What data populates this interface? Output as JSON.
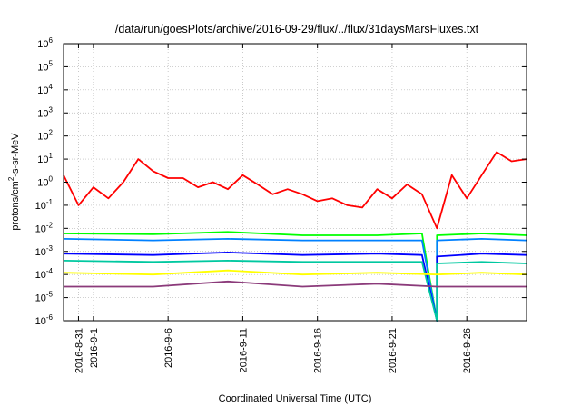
{
  "chart_data": {
    "type": "line",
    "title": "/data/run/goesPlots/archive/2016-09-29/flux/../flux/31daysMarsFluxes.txt",
    "xlabel": "Coordinated Universal Time (UTC)",
    "ylabel_parts": [
      "protons/cm",
      "2",
      "-s-sr-MeV"
    ],
    "y_scale": "log",
    "ylim": [
      1e-06,
      1000000.0
    ],
    "y_ticks": [
      {
        "base": "10",
        "exp": "-6"
      },
      {
        "base": "10",
        "exp": "-5"
      },
      {
        "base": "10",
        "exp": "-4"
      },
      {
        "base": "10",
        "exp": "-3"
      },
      {
        "base": "10",
        "exp": "-2"
      },
      {
        "base": "10",
        "exp": "-1"
      },
      {
        "base": "10",
        "exp": "0"
      },
      {
        "base": "10",
        "exp": "1"
      },
      {
        "base": "10",
        "exp": "2"
      },
      {
        "base": "10",
        "exp": "3"
      },
      {
        "base": "10",
        "exp": "4"
      },
      {
        "base": "10",
        "exp": "5"
      },
      {
        "base": "10",
        "exp": "6"
      }
    ],
    "xlim": [
      "2016-08-30",
      "2016-09-30"
    ],
    "x_ticks": [
      "2016-8-31",
      "2016-9-1",
      "2016-9-6",
      "2016-9-11",
      "2016-9-16",
      "2016-9-21",
      "2016-9-26"
    ],
    "grid": true,
    "series": [
      {
        "color": "#ff0000",
        "x": [
          "2016-08-30",
          "2016-08-31",
          "2016-09-01",
          "2016-09-02",
          "2016-09-03",
          "2016-09-04",
          "2016-09-05",
          "2016-09-06",
          "2016-09-07",
          "2016-09-08",
          "2016-09-09",
          "2016-09-10",
          "2016-09-11",
          "2016-09-12",
          "2016-09-13",
          "2016-09-14",
          "2016-09-15",
          "2016-09-16",
          "2016-09-17",
          "2016-09-18",
          "2016-09-19",
          "2016-09-20",
          "2016-09-21",
          "2016-09-22",
          "2016-09-23",
          "2016-09-24",
          "2016-09-25",
          "2016-09-26",
          "2016-09-27",
          "2016-09-28",
          "2016-09-29",
          "2016-09-30"
        ],
        "values": [
          2,
          0.1,
          0.6,
          0.2,
          1,
          10,
          3,
          1.5,
          1.5,
          0.6,
          1,
          0.5,
          2,
          0.8,
          0.3,
          0.5,
          0.3,
          0.15,
          0.2,
          0.1,
          0.08,
          0.5,
          0.2,
          0.8,
          0.3,
          0.01,
          2,
          0.2,
          2,
          20,
          8,
          10
        ]
      },
      {
        "color": "#00ff00",
        "x": [
          "2016-08-30",
          "2016-09-05",
          "2016-09-10",
          "2016-09-15",
          "2016-09-20",
          "2016-09-23",
          "2016-09-24",
          "2016-09-24",
          "2016-09-27",
          "2016-09-30"
        ],
        "values": [
          0.006,
          0.0055,
          0.007,
          0.005,
          0.005,
          0.006,
          1e-06,
          0.005,
          0.006,
          0.005
        ]
      },
      {
        "color": "#0080ff",
        "x": [
          "2016-08-30",
          "2016-09-05",
          "2016-09-10",
          "2016-09-15",
          "2016-09-20",
          "2016-09-23",
          "2016-09-24",
          "2016-09-24",
          "2016-09-27",
          "2016-09-30"
        ],
        "values": [
          0.0035,
          0.003,
          0.0035,
          0.003,
          0.003,
          0.003,
          1e-06,
          0.003,
          0.0035,
          0.003
        ]
      },
      {
        "color": "#0000ff",
        "x": [
          "2016-08-30",
          "2016-09-05",
          "2016-09-10",
          "2016-09-15",
          "2016-09-20",
          "2016-09-23",
          "2016-09-24",
          "2016-09-24",
          "2016-09-27",
          "2016-09-30"
        ],
        "values": [
          0.0008,
          0.0007,
          0.0009,
          0.0007,
          0.0008,
          0.0007,
          1e-06,
          0.0006,
          0.0008,
          0.0007
        ]
      },
      {
        "color": "#00c8a0",
        "x": [
          "2016-08-30",
          "2016-09-05",
          "2016-09-10",
          "2016-09-15",
          "2016-09-20",
          "2016-09-23",
          "2016-09-24",
          "2016-09-24",
          "2016-09-27",
          "2016-09-30"
        ],
        "values": [
          0.0004,
          0.00035,
          0.0004,
          0.00035,
          0.00035,
          0.00035,
          1e-06,
          0.0003,
          0.00035,
          0.0003
        ]
      },
      {
        "color": "#ffff00",
        "x": [
          "2016-08-30",
          "2016-09-05",
          "2016-09-10",
          "2016-09-15",
          "2016-09-20",
          "2016-09-24",
          "2016-09-27",
          "2016-09-30"
        ],
        "values": [
          0.00012,
          0.0001,
          0.00015,
          0.0001,
          0.00012,
          0.0001,
          0.00012,
          0.0001
        ]
      },
      {
        "color": "#8b3a7a",
        "x": [
          "2016-08-30",
          "2016-09-05",
          "2016-09-10",
          "2016-09-15",
          "2016-09-20",
          "2016-09-24",
          "2016-09-27",
          "2016-09-30"
        ],
        "values": [
          3e-05,
          3e-05,
          5e-05,
          3e-05,
          4e-05,
          3e-05,
          3e-05,
          3e-05
        ]
      }
    ]
  }
}
